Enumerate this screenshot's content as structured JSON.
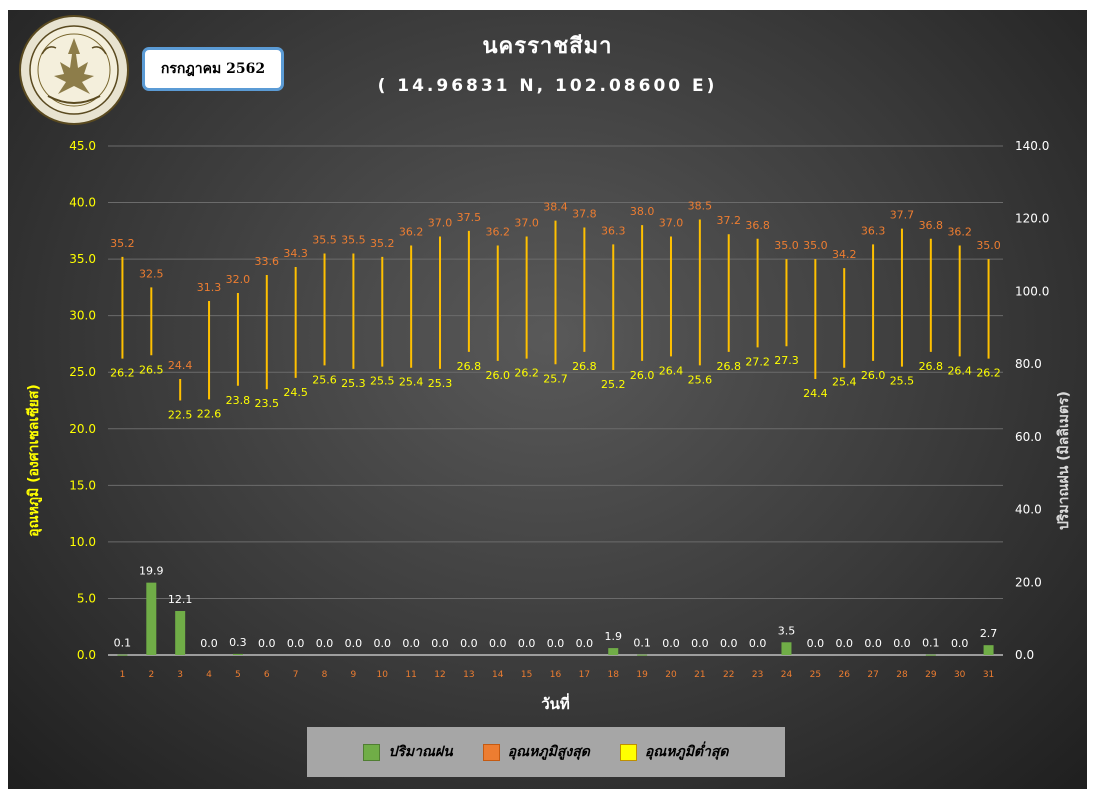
{
  "header": {
    "month_label": "กรกฎาคม 2562",
    "title": "นครราชสีมา",
    "subtitle": "( 14.96831 N, 102.08600 E)"
  },
  "logo": {
    "icon": "meteorological-department-seal-icon",
    "text": "กรมอุตุนิยมวิทยา METEOROLOGICAL DEPARTMENT"
  },
  "colors": {
    "rain": "#70ad47",
    "max_temp": "#ed7d31",
    "min_temp": "#ffff00",
    "temp_bar": "#ffc000",
    "axis_left_text": "#ffff00",
    "axis_right_text": "#ffffff",
    "grid": "#6b6b6b"
  },
  "legend": {
    "items": [
      {
        "label": "ปริมาณฝน",
        "color": "#70ad47"
      },
      {
        "label": "อุณหภูมิสูงสุด",
        "color": "#ed7d31"
      },
      {
        "label": "อุณหภูมิต่ำสุด",
        "color": "#ffff00"
      }
    ]
  },
  "chart_data": {
    "type": "bar",
    "xlabel": "วันที่",
    "ylabel_left": "อุณหภูมิ (องศาเซลเซียส)",
    "ylabel_right": "ปริมาณฝน (มิลลิเมตร)",
    "ylim_left": [
      0,
      45
    ],
    "ylim_right": [
      0,
      140
    ],
    "yticks_left": [
      "0.0",
      "5.0",
      "10.0",
      "15.0",
      "20.0",
      "25.0",
      "30.0",
      "35.0",
      "40.0",
      "45.0"
    ],
    "yticks_right": [
      "0.0",
      "20.0",
      "40.0",
      "60.0",
      "80.0",
      "100.0",
      "120.0",
      "140.0"
    ],
    "grid": true,
    "legend_position": "bottom",
    "categories": [
      "1",
      "2",
      "3",
      "4",
      "5",
      "6",
      "7",
      "8",
      "9",
      "10",
      "11",
      "12",
      "13",
      "14",
      "15",
      "16",
      "17",
      "18",
      "19",
      "20",
      "21",
      "22",
      "23",
      "24",
      "25",
      "26",
      "27",
      "28",
      "29",
      "30",
      "31"
    ],
    "series": [
      {
        "name": "ปริมาณฝน",
        "type": "bar",
        "axis": "right",
        "values": [
          0.1,
          19.9,
          12.1,
          0.0,
          0.3,
          0.0,
          0.0,
          0.0,
          0.0,
          0.0,
          0.0,
          0.0,
          0.0,
          0.0,
          0.0,
          0.0,
          0.0,
          1.9,
          0.1,
          0.0,
          0.0,
          0.0,
          0.0,
          3.5,
          0.0,
          0.0,
          0.0,
          0.0,
          0.1,
          0.0,
          2.7
        ],
        "labels": [
          "0.1",
          "19.9",
          "12.1",
          "0.0",
          "0.3",
          "0.0",
          "0.0",
          "0.0",
          "0.0",
          "0.0",
          "0.0",
          "0.0",
          "0.0",
          "0.0",
          "0.0",
          "0.0",
          "0.0",
          "1.9",
          "0.1",
          "0.0",
          "0.0",
          "0.0",
          "0.0",
          "3.5",
          "0.0",
          "0.0",
          "0.0",
          "0.0",
          "0.1",
          "0.0",
          "2.7"
        ]
      },
      {
        "name": "อุณหภูมิสูงสุด",
        "type": "range-high",
        "axis": "left",
        "values": [
          35.2,
          32.5,
          24.4,
          31.3,
          32.0,
          33.6,
          34.3,
          35.5,
          35.5,
          35.2,
          36.2,
          37.0,
          37.5,
          36.2,
          37.0,
          38.4,
          37.8,
          36.3,
          38.0,
          37.0,
          38.5,
          37.2,
          36.8,
          35.0,
          35.0,
          34.2,
          36.3,
          37.7,
          36.8,
          36.2,
          35.0
        ],
        "labels": [
          "35.2",
          "32.5",
          "24.4",
          "31.3",
          "32.0",
          "33.6",
          "34.3",
          "35.5",
          "35.5",
          "35.2",
          "36.2",
          "37.0",
          "37.5",
          "36.2",
          "37.0",
          "38.4",
          "37.8",
          "36.3",
          "38.0",
          "37.0",
          "38.5",
          "37.2",
          "36.8",
          "35.0",
          "35.0",
          "34.2",
          "36.3",
          "37.7",
          "36.8",
          "36.2",
          "35.0"
        ]
      },
      {
        "name": "อุณหภูมิต่ำสุด",
        "type": "range-low",
        "axis": "left",
        "values": [
          26.2,
          26.5,
          22.5,
          22.6,
          23.8,
          23.5,
          24.5,
          25.6,
          25.3,
          25.5,
          25.4,
          25.3,
          26.8,
          26.0,
          26.2,
          25.7,
          26.8,
          25.2,
          26.0,
          26.4,
          25.6,
          26.8,
          27.2,
          27.3,
          24.4,
          25.4,
          26.0,
          25.5,
          26.8,
          26.4,
          26.2
        ],
        "labels": [
          "26.2",
          "26.5",
          "22.5",
          "22.6",
          "23.8",
          "23.5",
          "24.5",
          "25.6",
          "25.3",
          "25.5",
          "25.4",
          "25.3",
          "26.8",
          "26.0",
          "26.2",
          "25.7",
          "26.8",
          "25.2",
          "26.0",
          "26.4",
          "25.6",
          "26.8",
          "27.2",
          "27.3",
          "24.4",
          "25.4",
          "26.0",
          "25.5",
          "26.8",
          "26.4",
          "26.2"
        ]
      }
    ]
  }
}
